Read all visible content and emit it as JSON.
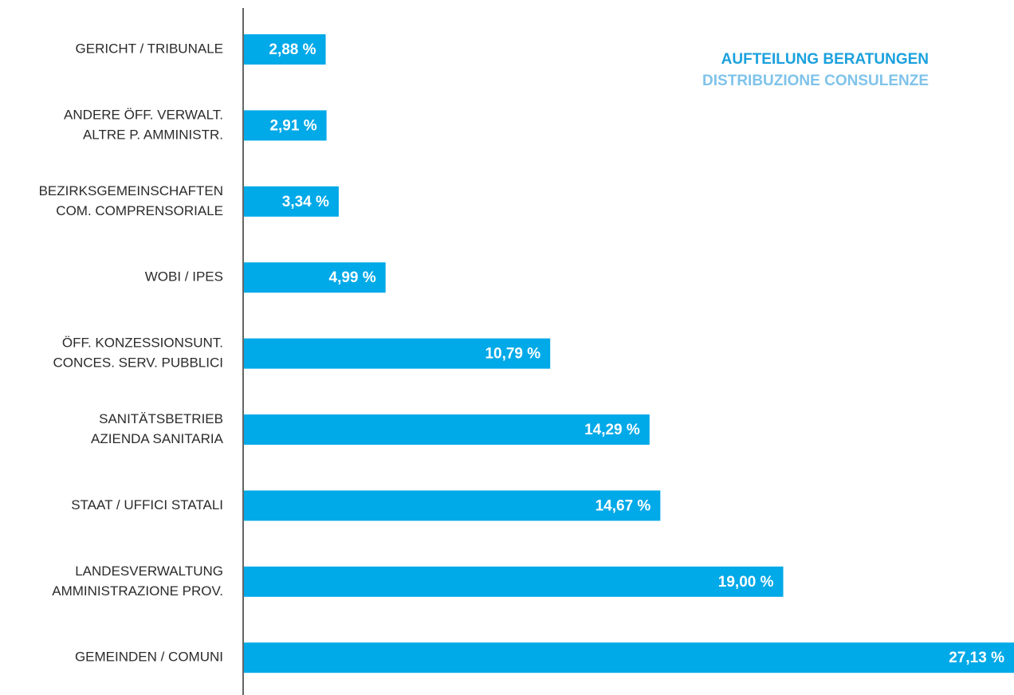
{
  "chart_data": {
    "type": "bar",
    "orientation": "horizontal",
    "title": "AUFTEILUNG BERATUNGEN",
    "subtitle": "DISTRIBUZIONE CONSULENZE",
    "categories": [
      [
        "GERICHT / TRIBUNALE"
      ],
      [
        "ANDERE ÖFF. VERWALT.",
        "ALTRE P. AMMINISTR."
      ],
      [
        "BEZIRKSGEMEINSCHAFTEN",
        "COM. COMPRENSORIALE"
      ],
      [
        "WOBI / IPES"
      ],
      [
        "ÖFF. KONZESSIONSUNT.",
        "CONCES. SERV. PUBBLICI"
      ],
      [
        "SANITÄTSBETRIEB",
        "AZIENDA SANITARIA"
      ],
      [
        "STAAT / UFFICI STATALI"
      ],
      [
        "LANDESVERWALTUNG",
        "AMMINISTRAZIONE PROV."
      ],
      [
        "GEMEINDEN / COMUNI"
      ]
    ],
    "values": [
      2.88,
      2.91,
      3.34,
      4.99,
      10.79,
      14.29,
      14.67,
      19.0,
      27.13
    ],
    "value_labels": [
      "2,88 %",
      "2,91 %",
      "3,34 %",
      "4,99 %",
      "10,79 %",
      "14,29 %",
      "14,67 %",
      "19,00 %",
      "27,13 %"
    ],
    "color": "#00a9e8"
  }
}
